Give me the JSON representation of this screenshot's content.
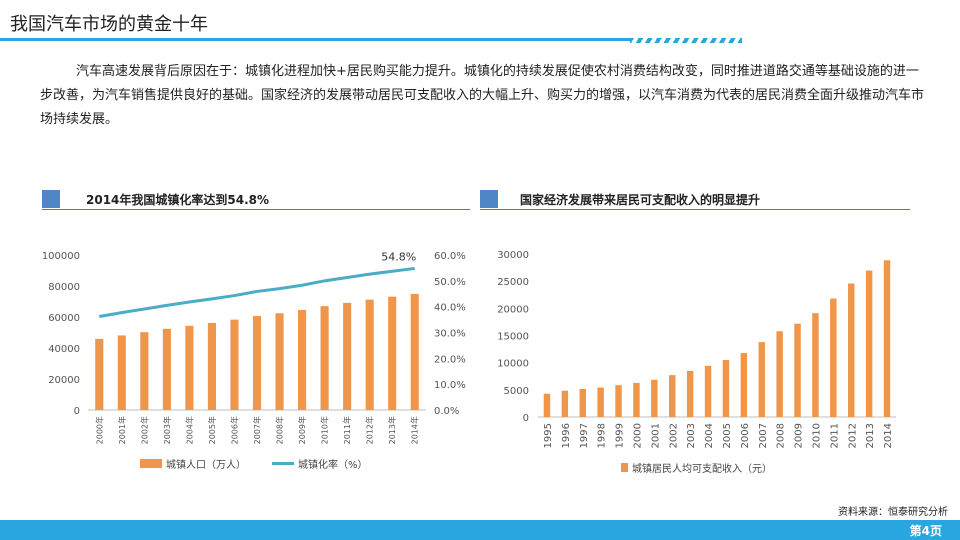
{
  "page": {
    "title": "我国汽车市场的黄金十年",
    "intro": "汽车高速发展背后原因在于：城镇化进程加快+居民购买能力提升。城镇化的持续发展促使农村消费结构改变，同时推进道路交通等基础设施的进一步改善，为汽车销售提供良好的基础。国家经济的发展带动居民可支配收入的大幅上升、购买力的增强，以汽车消费为代表的居民消费全面升级推动汽车市场持续发展。",
    "source": "资料来源：恒泰研究分析",
    "page_number": "第4页"
  },
  "colors": {
    "accent": "#29a6df",
    "bar": "#f0964a",
    "line": "#4bacc6",
    "panel_square": "#4f86c6",
    "panel_rule": "#c0504d"
  },
  "chart_data": [
    {
      "type": "bar",
      "title": "2014年我国城镇化率达到54.8%",
      "categories": [
        "2000年",
        "2001年",
        "2002年",
        "2003年",
        "2004年",
        "2005年",
        "2006年",
        "2007年",
        "2008年",
        "2009年",
        "2010年",
        "2011年",
        "2012年",
        "2013年",
        "2014年"
      ],
      "series": [
        {
          "name": "城镇人口（万人）",
          "type": "bar",
          "axis": "left",
          "values": [
            45900,
            48100,
            50200,
            52400,
            54300,
            56200,
            58300,
            60600,
            62400,
            64500,
            67000,
            69100,
            71200,
            73100,
            74900
          ]
        },
        {
          "name": "城镇化率（%）",
          "type": "line",
          "axis": "right",
          "values": [
            36.2,
            37.7,
            39.1,
            40.5,
            41.8,
            43.0,
            44.3,
            45.9,
            47.0,
            48.3,
            50.0,
            51.3,
            52.6,
            53.7,
            54.8
          ]
        }
      ],
      "ylim": [
        0,
        100000
      ],
      "yticks": [
        "0",
        "20000",
        "40000",
        "60000",
        "80000",
        "100000"
      ],
      "y2lim": [
        0,
        60
      ],
      "y2ticks": [
        "0.0%",
        "10.0%",
        "20.0%",
        "30.0%",
        "40.0%",
        "50.0%",
        "60.0%"
      ],
      "annotation": "54.8%",
      "legend": "bottom"
    },
    {
      "type": "bar",
      "title": "国家经济发展带来居民可支配收入的明显提升",
      "categories": [
        "1995",
        "1996",
        "1997",
        "1998",
        "1999",
        "2000",
        "2001",
        "2002",
        "2003",
        "2004",
        "2005",
        "2006",
        "2007",
        "2008",
        "2009",
        "2010",
        "2011",
        "2012",
        "2013",
        "2014"
      ],
      "series": [
        {
          "name": "城镇居民人均可支配收入（元）",
          "values": [
            4283,
            4839,
            5160,
            5425,
            5854,
            6280,
            6860,
            7703,
            8472,
            9422,
            10493,
            11759,
            13786,
            15781,
            17175,
            19109,
            21810,
            24565,
            26955,
            28844
          ]
        }
      ],
      "ylim": [
        0,
        30000
      ],
      "yticks": [
        "0",
        "5000",
        "10000",
        "15000",
        "20000",
        "25000",
        "30000"
      ],
      "legend": "bottom"
    }
  ]
}
